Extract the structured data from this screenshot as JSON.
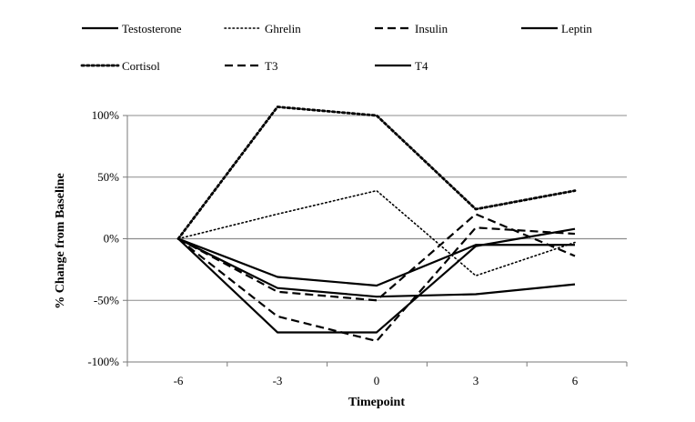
{
  "chart_data": {
    "type": "line",
    "title": "",
    "xlabel": "Timepoint",
    "ylabel": "% Change from Baseline",
    "x": [
      -6,
      -3,
      0,
      3,
      6
    ],
    "x_tick_labels": [
      "-6",
      "-3",
      "0",
      "3",
      "6"
    ],
    "ylim": [
      -100,
      100
    ],
    "y_ticks": [
      -100,
      -50,
      0,
      50,
      100
    ],
    "y_tick_labels": [
      "-100%",
      "-50%",
      "0%",
      "50%",
      "100%"
    ],
    "grid": "horizontal",
    "legend_position": "top",
    "series": [
      {
        "name": "Testosterone",
        "style": "solid",
        "color": "#000000",
        "values": [
          0,
          -31,
          -38,
          -5,
          -5
        ]
      },
      {
        "name": "Ghrelin",
        "style": "dotted-fine",
        "color": "#000000",
        "values": [
          0,
          20,
          39,
          -30,
          -3
        ]
      },
      {
        "name": "Insulin",
        "style": "dashed",
        "color": "#000000",
        "values": [
          0,
          -43,
          -50,
          20,
          -14
        ]
      },
      {
        "name": "Leptin",
        "style": "solid",
        "color": "#000000",
        "values": [
          0,
          -40,
          -47,
          -45,
          -37
        ]
      },
      {
        "name": "Cortisol",
        "style": "dotted",
        "color": "#000000",
        "values": [
          0,
          107,
          100,
          24,
          39
        ]
      },
      {
        "name": "T3",
        "style": "dashed",
        "color": "#000000",
        "values": [
          0,
          -63,
          -83,
          9,
          4
        ]
      },
      {
        "name": "T4",
        "style": "solid",
        "color": "#000000",
        "values": [
          0,
          -76,
          -76,
          -6,
          8
        ]
      }
    ]
  }
}
